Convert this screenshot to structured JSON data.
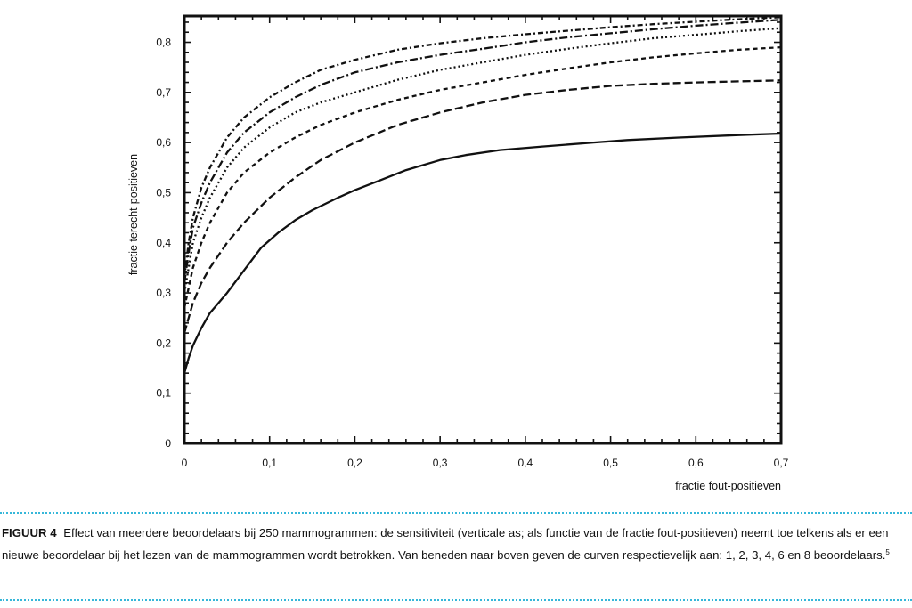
{
  "chart_data": {
    "type": "line",
    "title": "",
    "xlabel": "fractie fout-positieven",
    "ylabel": "fractie terecht-positieven",
    "xlim": [
      0,
      0.7
    ],
    "ylim": [
      0,
      0.85
    ],
    "x_ticks": [
      0,
      0.1,
      0.2,
      0.3,
      0.4,
      0.5,
      0.6,
      0.7
    ],
    "x_tick_labels": [
      "0",
      "0,1",
      "0,2",
      "0,3",
      "0,4",
      "0,5",
      "0,6",
      "0,7"
    ],
    "y_ticks": [
      0,
      0.1,
      0.2,
      0.3,
      0.4,
      0.5,
      0.6,
      0.7,
      0.8
    ],
    "y_tick_labels": [
      "0",
      "0,1",
      "0,2",
      "0,3",
      "0,4",
      "0,5",
      "0,6",
      "0,7",
      "0,8"
    ],
    "grid": false,
    "legend": "none",
    "series": [
      {
        "style": "solid",
        "x": [
          0,
          0.005,
          0.01,
          0.02,
          0.03,
          0.05,
          0.07,
          0.09,
          0.11,
          0.13,
          0.15,
          0.18,
          0.2,
          0.23,
          0.26,
          0.3,
          0.33,
          0.37,
          0.42,
          0.48,
          0.52,
          0.58,
          0.65,
          0.7
        ],
        "y": [
          0.14,
          0.17,
          0.195,
          0.23,
          0.26,
          0.3,
          0.345,
          0.39,
          0.42,
          0.445,
          0.465,
          0.49,
          0.505,
          0.525,
          0.545,
          0.565,
          0.575,
          0.585,
          0.592,
          0.6,
          0.605,
          0.61,
          0.615,
          0.618
        ]
      },
      {
        "style": "dashed",
        "x": [
          0,
          0.005,
          0.01,
          0.02,
          0.03,
          0.05,
          0.07,
          0.1,
          0.13,
          0.16,
          0.2,
          0.25,
          0.3,
          0.35,
          0.4,
          0.45,
          0.5,
          0.55,
          0.6,
          0.65,
          0.7
        ],
        "y": [
          0.22,
          0.25,
          0.28,
          0.32,
          0.35,
          0.4,
          0.44,
          0.49,
          0.53,
          0.565,
          0.6,
          0.635,
          0.66,
          0.68,
          0.695,
          0.705,
          0.713,
          0.717,
          0.72,
          0.722,
          0.724
        ]
      },
      {
        "style": "short-dashed",
        "x": [
          0,
          0.005,
          0.01,
          0.02,
          0.03,
          0.05,
          0.07,
          0.1,
          0.13,
          0.16,
          0.2,
          0.25,
          0.3,
          0.35,
          0.4,
          0.45,
          0.5,
          0.55,
          0.6,
          0.65,
          0.7
        ],
        "y": [
          0.27,
          0.31,
          0.35,
          0.4,
          0.44,
          0.5,
          0.54,
          0.58,
          0.61,
          0.635,
          0.66,
          0.685,
          0.705,
          0.72,
          0.735,
          0.748,
          0.76,
          0.77,
          0.778,
          0.785,
          0.79
        ]
      },
      {
        "style": "dotted",
        "x": [
          0,
          0.005,
          0.01,
          0.02,
          0.03,
          0.05,
          0.07,
          0.1,
          0.13,
          0.16,
          0.2,
          0.25,
          0.3,
          0.35,
          0.4,
          0.45,
          0.5,
          0.55,
          0.6,
          0.65,
          0.7
        ],
        "y": [
          0.3,
          0.35,
          0.4,
          0.45,
          0.49,
          0.55,
          0.59,
          0.63,
          0.66,
          0.68,
          0.7,
          0.725,
          0.745,
          0.76,
          0.775,
          0.787,
          0.798,
          0.808,
          0.815,
          0.822,
          0.828
        ]
      },
      {
        "style": "dash-dot",
        "x": [
          0,
          0.005,
          0.01,
          0.02,
          0.03,
          0.05,
          0.07,
          0.1,
          0.13,
          0.16,
          0.2,
          0.25,
          0.3,
          0.35,
          0.4,
          0.45,
          0.5,
          0.55,
          0.6,
          0.65,
          0.7
        ],
        "y": [
          0.32,
          0.38,
          0.43,
          0.48,
          0.52,
          0.58,
          0.62,
          0.66,
          0.69,
          0.715,
          0.74,
          0.76,
          0.775,
          0.787,
          0.8,
          0.81,
          0.818,
          0.826,
          0.833,
          0.839,
          0.845
        ]
      },
      {
        "style": "dash-dot-long",
        "x": [
          0,
          0.005,
          0.01,
          0.02,
          0.03,
          0.05,
          0.07,
          0.1,
          0.13,
          0.16,
          0.2,
          0.25,
          0.3,
          0.35,
          0.4,
          0.45,
          0.5,
          0.55,
          0.6,
          0.65,
          0.7
        ],
        "y": [
          0.33,
          0.4,
          0.45,
          0.51,
          0.55,
          0.61,
          0.65,
          0.69,
          0.72,
          0.745,
          0.765,
          0.785,
          0.798,
          0.808,
          0.816,
          0.823,
          0.83,
          0.836,
          0.841,
          0.846,
          0.85
        ]
      }
    ]
  },
  "caption": {
    "label": "FIGUUR 4",
    "text": "Effect van meerdere beoordelaars bij 250 mammogrammen: de sensitiviteit (verticale as; als functie van de fractie fout-positieven) neemt toe telkens als er een nieuwe beoordelaar bij het lezen van de mammogrammen wordt betrokken. Van beneden naar boven geven de curven respectievelijk aan: 1, 2, 3, 4, 6 en 8 beoordelaars.",
    "footnote": "5"
  },
  "colors": {
    "rule": "#36b7d9",
    "ink": "#111111"
  }
}
